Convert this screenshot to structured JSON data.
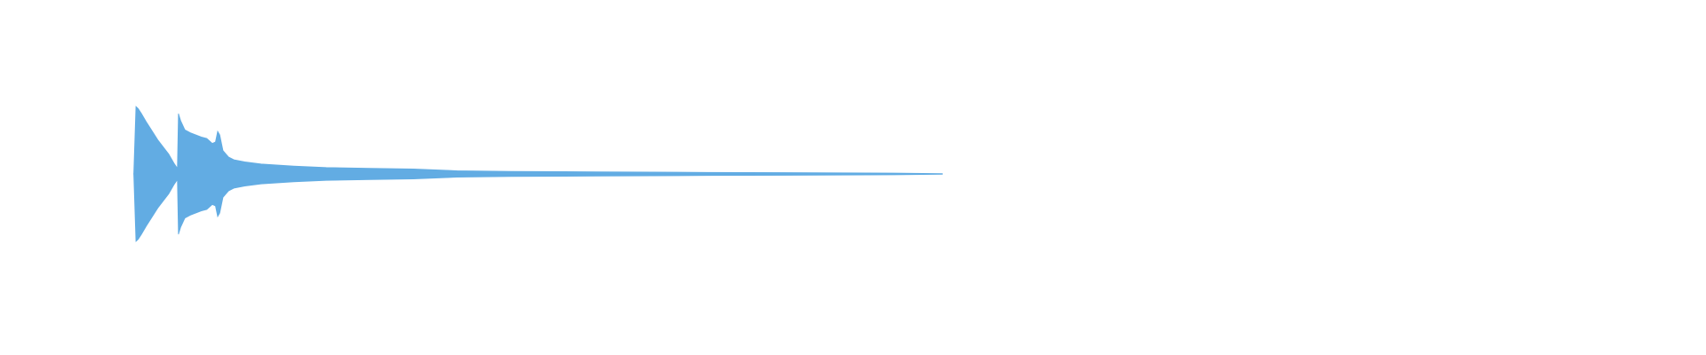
{
  "chart_data": {
    "type": "waveform",
    "color": "#62ace3",
    "xlim": [
      0,
      1
    ],
    "ylim": [
      -1,
      1
    ],
    "x": [
      0.0784,
      0.0797,
      0.081,
      0.0829,
      0.0861,
      0.0893,
      0.0925,
      0.0957,
      0.0989,
      0.102,
      0.104,
      0.1046,
      0.1059,
      0.1084,
      0.1116,
      0.1148,
      0.118,
      0.1212,
      0.1244,
      0.1263,
      0.1276,
      0.1288,
      0.1307,
      0.1339,
      0.1371,
      0.1435,
      0.1531,
      0.1722,
      0.1913,
      0.2168,
      0.2423,
      0.2679,
      0.2997,
      0.3508,
      0.4145,
      0.4783,
      0.523,
      0.5523
    ],
    "values": [
      0,
      0.95,
      0.92,
      0.85,
      0.72,
      0.6,
      0.48,
      0.38,
      0.28,
      0.15,
      0.08,
      0.85,
      0.75,
      0.62,
      0.58,
      0.55,
      0.52,
      0.5,
      0.43,
      0.45,
      0.6,
      0.55,
      0.33,
      0.24,
      0.2,
      0.17,
      0.14,
      0.11,
      0.09,
      0.08,
      0.07,
      0.045,
      0.035,
      0.03,
      0.022,
      0.017,
      0.012,
      0.005
    ]
  }
}
